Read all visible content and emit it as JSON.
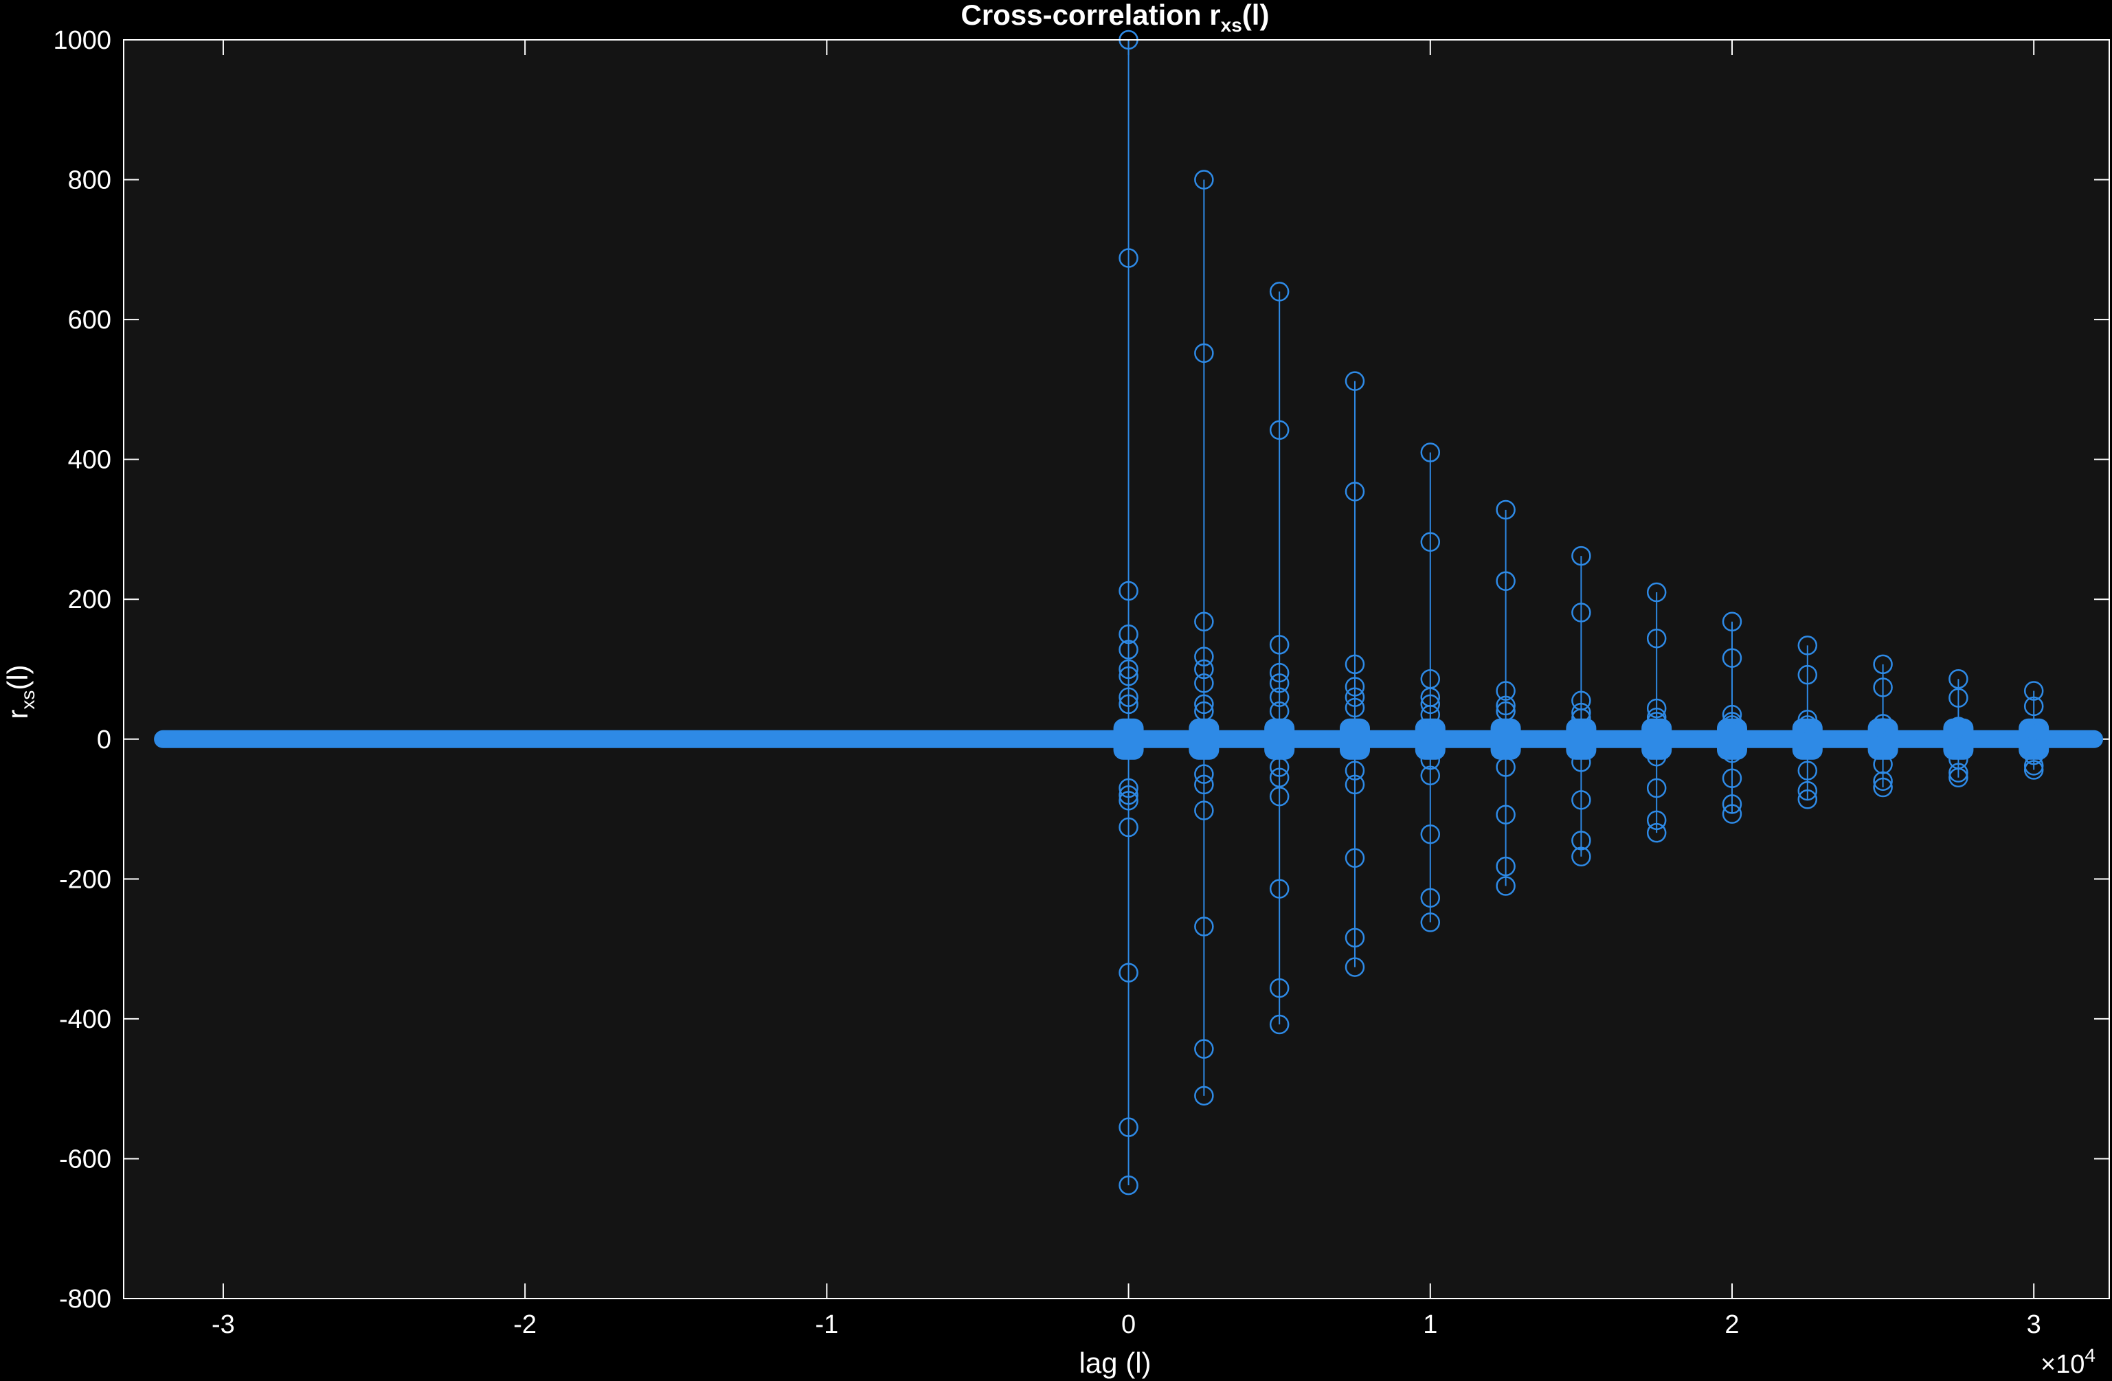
{
  "chart_data": {
    "type": "stem",
    "title": {
      "main": "Cross-correlation  r",
      "sub": "xs",
      "tail": "(l)"
    },
    "xlabel": "lag (l)",
    "ylabel": {
      "main": "r",
      "sub": "xs",
      "tail": "(l)"
    },
    "x_exponent": {
      "base": "×10",
      "power": "4"
    },
    "xlim": [
      -3.33,
      3.25
    ],
    "ylim": [
      -800,
      1000
    ],
    "x_ticks": [
      -3,
      -2,
      -1,
      0,
      1,
      2,
      3
    ],
    "x_tick_labels": [
      "-3",
      "-2",
      "-1",
      "0",
      "1",
      "2",
      "3"
    ],
    "y_ticks": [
      -800,
      -600,
      -400,
      -200,
      0,
      200,
      400,
      600,
      800,
      1000
    ],
    "y_tick_labels": [
      "-800",
      "-600",
      "-400",
      "-200",
      "0",
      "200",
      "400",
      "600",
      "800",
      "1000"
    ],
    "x_unit_note": "x values in units of 10^4 lags",
    "baseline_range": [
      -3.2,
      3.2
    ],
    "series": [
      {
        "color": "#2e8ae6",
        "stems": [
          {
            "x": 0.0,
            "values": [
              1000,
              688,
              212,
              150,
              128,
              100,
              90,
              60,
              50,
              -70,
              -80,
              -88,
              -126,
              -334,
              -555,
              -638
            ]
          },
          {
            "x": 0.25,
            "values": [
              800,
              552,
              168,
              118,
              100,
              80,
              50,
              40,
              -50,
              -65,
              -102,
              -268,
              -443,
              -510
            ]
          },
          {
            "x": 0.5,
            "values": [
              640,
              442,
              135,
              95,
              80,
              60,
              40,
              -40,
              -55,
              -82,
              -214,
              -356,
              -408
            ]
          },
          {
            "x": 0.75,
            "values": [
              512,
              354,
              107,
              75,
              60,
              45,
              -45,
              -65,
              -170,
              -284,
              -326
            ]
          },
          {
            "x": 1.0,
            "values": [
              410,
              282,
              86,
              60,
              50,
              35,
              -30,
              -52,
              -136,
              -227,
              -262
            ]
          },
          {
            "x": 1.25,
            "values": [
              328,
              226,
              69,
              48,
              40,
              -40,
              -108,
              -182,
              -210
            ]
          },
          {
            "x": 1.5,
            "values": [
              262,
              181,
              55,
              38,
              30,
              -33,
              -87,
              -145,
              -168
            ]
          },
          {
            "x": 1.75,
            "values": [
              210,
              144,
              44,
              31,
              25,
              -25,
              -70,
              -116,
              -134
            ]
          },
          {
            "x": 2.0,
            "values": [
              168,
              116,
              35,
              25,
              20,
              -20,
              -56,
              -93,
              -107
            ]
          },
          {
            "x": 2.25,
            "values": [
              134,
              92,
              28,
              20,
              -45,
              -74,
              -86
            ]
          },
          {
            "x": 2.5,
            "values": [
              107,
              74,
              22,
              16,
              -36,
              -60,
              -69
            ]
          },
          {
            "x": 2.75,
            "values": [
              86,
              59,
              18,
              13,
              -29,
              -48,
              -55
            ]
          },
          {
            "x": 3.0,
            "values": [
              69,
              47,
              14,
              10,
              -23,
              -38,
              -44
            ]
          }
        ]
      }
    ]
  }
}
